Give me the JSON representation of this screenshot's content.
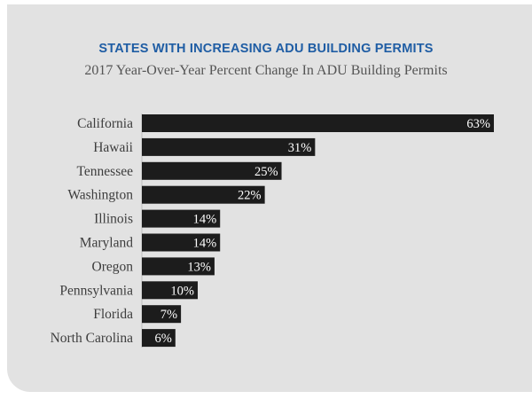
{
  "chart_data": {
    "type": "bar",
    "orientation": "horizontal",
    "title": "STATES WITH INCREASING ADU BUILDING PERMITS",
    "subtitle": "2017 Year-Over-Year Percent Change In ADU Building Permits",
    "categories": [
      "California",
      "Hawaii",
      "Tennessee",
      "Washington",
      "Illinois",
      "Maryland",
      "Oregon",
      "Pennsylvania",
      "Florida",
      "North Carolina"
    ],
    "values": [
      63,
      31,
      25,
      22,
      14,
      14,
      13,
      10,
      7,
      6
    ],
    "value_labels": [
      "63%",
      "31%",
      "25%",
      "22%",
      "14%",
      "14%",
      "13%",
      "10%",
      "7%",
      "6%"
    ],
    "unit": "%",
    "xlim": [
      0,
      63
    ],
    "xlabel": "",
    "ylabel": "",
    "grid": false,
    "legend": "none"
  },
  "colors": {
    "background": "#e2e2e2",
    "title": "#1f5da4",
    "bar": "#1c1c1c",
    "bar_label": "#ffffff",
    "category_label": "#3d3d3d",
    "axis": "#bdbdbd"
  }
}
